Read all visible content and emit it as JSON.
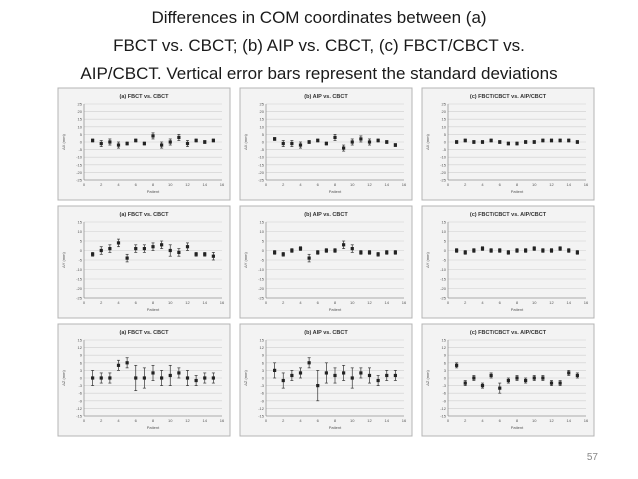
{
  "slide": {
    "title_lines": [
      "Differences in COM coordinates between (a)",
      "FBCT vs. CBCT; (b) AIP vs. CBCT, (c) FBCT/CBCT vs.",
      "AIP/CBCT. Vertical error bars represent the standard deviations"
    ],
    "page_number": "57"
  },
  "chart_data": [
    {
      "type": "scatter",
      "title": "(a) FBCT vs. CBCT",
      "xlabel": "Patient",
      "ylabel": "ΔX (mm)",
      "xlim": [
        0,
        16
      ],
      "ylim": [
        -25,
        25
      ],
      "xticks": [
        0,
        2,
        4,
        6,
        8,
        10,
        12,
        14,
        16
      ],
      "yticks": [
        -25,
        -20,
        -15,
        -10,
        -5,
        0,
        5,
        10,
        15,
        20,
        25
      ],
      "x": [
        1,
        2,
        3,
        4,
        5,
        6,
        7,
        8,
        9,
        10,
        11,
        12,
        13,
        14,
        15
      ],
      "y": [
        1,
        -1,
        0,
        -2,
        -1,
        1,
        -1,
        4,
        -2,
        0,
        3,
        -1,
        1,
        0,
        1
      ],
      "err": [
        1,
        2,
        2,
        2,
        1,
        1,
        1,
        2,
        2,
        2,
        2,
        2,
        1,
        1,
        1
      ]
    },
    {
      "type": "scatter",
      "title": "(b) AIP vs. CBCT",
      "xlabel": "Patient",
      "ylabel": "ΔX (mm)",
      "xlim": [
        0,
        16
      ],
      "ylim": [
        -25,
        25
      ],
      "xticks": [
        0,
        2,
        4,
        6,
        8,
        10,
        12,
        14,
        16
      ],
      "yticks": [
        -25,
        -20,
        -15,
        -10,
        -5,
        0,
        5,
        10,
        15,
        20,
        25
      ],
      "x": [
        1,
        2,
        3,
        4,
        5,
        6,
        7,
        8,
        9,
        10,
        11,
        12,
        13,
        14,
        15
      ],
      "y": [
        2,
        -1,
        -1,
        -2,
        0,
        1,
        -1,
        3,
        -4,
        0,
        2,
        0,
        1,
        0,
        -2
      ],
      "err": [
        1,
        2,
        2,
        2,
        1,
        1,
        1,
        2,
        2,
        2,
        2,
        2,
        1,
        1,
        1
      ]
    },
    {
      "type": "scatter",
      "title": "(c) FBCT/CBCT vs. AIP/CBCT",
      "xlabel": "Patient",
      "ylabel": "ΔX (mm)",
      "xlim": [
        0,
        16
      ],
      "ylim": [
        -25,
        25
      ],
      "xticks": [
        0,
        2,
        4,
        6,
        8,
        10,
        12,
        14,
        16
      ],
      "yticks": [
        -25,
        -20,
        -15,
        -10,
        -5,
        0,
        5,
        10,
        15,
        20,
        25
      ],
      "x": [
        1,
        2,
        3,
        4,
        5,
        6,
        7,
        8,
        9,
        10,
        11,
        12,
        13,
        14,
        15
      ],
      "y": [
        0,
        1,
        0,
        0,
        1,
        0,
        -1,
        -1,
        0,
        0,
        1,
        1,
        1,
        1,
        0
      ],
      "err": [
        1,
        1,
        1,
        1,
        1,
        1,
        1,
        1,
        1,
        1,
        1,
        1,
        1,
        1,
        1
      ]
    },
    {
      "type": "scatter",
      "title": "(a) FBCT vs. CBCT",
      "xlabel": "Patient",
      "ylabel": "ΔY (mm)",
      "xlim": [
        0,
        16
      ],
      "ylim": [
        -25,
        15
      ],
      "xticks": [
        0,
        2,
        4,
        6,
        8,
        10,
        12,
        14,
        16
      ],
      "yticks": [
        -25,
        -20,
        -15,
        -10,
        -5,
        0,
        5,
        10,
        15
      ],
      "x": [
        1,
        2,
        3,
        4,
        5,
        6,
        7,
        8,
        9,
        10,
        11,
        12,
        13,
        14,
        15
      ],
      "y": [
        -2,
        0,
        1,
        4,
        -4,
        1,
        1,
        2,
        3,
        0,
        -1,
        2,
        -2,
        -2,
        -3
      ],
      "err": [
        1,
        2,
        2,
        2,
        2,
        2,
        2,
        2,
        2,
        3,
        2,
        2,
        1,
        1,
        2
      ]
    },
    {
      "type": "scatter",
      "title": "(b) AIP vs. CBCT",
      "xlabel": "Patient",
      "ylabel": "ΔY (mm)",
      "xlim": [
        0,
        16
      ],
      "ylim": [
        -25,
        15
      ],
      "xticks": [
        0,
        2,
        4,
        6,
        8,
        10,
        12,
        14,
        16
      ],
      "yticks": [
        -25,
        -20,
        -15,
        -10,
        -5,
        0,
        5,
        10,
        15
      ],
      "x": [
        1,
        2,
        3,
        4,
        5,
        6,
        7,
        8,
        9,
        10,
        11,
        12,
        13,
        14,
        15
      ],
      "y": [
        -1,
        -2,
        0,
        1,
        -4,
        -1,
        0,
        0,
        3,
        1,
        -1,
        -1,
        -2,
        -1,
        -1
      ],
      "err": [
        1,
        1,
        1,
        1,
        2,
        1,
        1,
        1,
        2,
        2,
        1,
        1,
        1,
        1,
        1
      ]
    },
    {
      "type": "scatter",
      "title": "(c) FBCT/CBCT vs. AIP/CBCT",
      "xlabel": "Patient",
      "ylabel": "ΔY (mm)",
      "xlim": [
        0,
        16
      ],
      "ylim": [
        -25,
        15
      ],
      "xticks": [
        0,
        2,
        4,
        6,
        8,
        10,
        12,
        14,
        16
      ],
      "yticks": [
        -25,
        -20,
        -15,
        -10,
        -5,
        0,
        5,
        10,
        15
      ],
      "x": [
        1,
        2,
        3,
        4,
        5,
        6,
        7,
        8,
        9,
        10,
        11,
        12,
        13,
        14,
        15
      ],
      "y": [
        0,
        -1,
        0,
        1,
        0,
        0,
        -1,
        0,
        0,
        1,
        0,
        0,
        1,
        0,
        -1
      ],
      "err": [
        1,
        1,
        1,
        1,
        1,
        1,
        1,
        1,
        1,
        1,
        1,
        1,
        1,
        1,
        1
      ]
    },
    {
      "type": "scatter",
      "title": "(a) FBCT vs. CBCT",
      "xlabel": "Patient",
      "ylabel": "ΔZ (mm)",
      "xlim": [
        0,
        16
      ],
      "ylim": [
        -15,
        15
      ],
      "xticks": [
        0,
        2,
        4,
        6,
        8,
        10,
        12,
        14,
        16
      ],
      "yticks": [
        -15,
        -12,
        -9,
        -6,
        -3,
        0,
        3,
        6,
        9,
        12,
        15
      ],
      "x": [
        1,
        2,
        3,
        4,
        5,
        6,
        7,
        8,
        9,
        10,
        11,
        12,
        13,
        14,
        15
      ],
      "y": [
        0,
        0,
        0,
        5,
        6,
        0,
        0,
        2,
        0,
        1,
        2,
        0,
        -1,
        0,
        0
      ],
      "err": [
        3,
        2,
        2,
        2,
        2,
        5,
        4,
        3,
        3,
        4,
        2,
        3,
        2,
        2,
        2
      ]
    },
    {
      "type": "scatter",
      "title": "(b) AIP vs. CBCT",
      "xlabel": "Patient",
      "ylabel": "ΔZ (mm)",
      "xlim": [
        0,
        16
      ],
      "ylim": [
        -15,
        15
      ],
      "xticks": [
        0,
        2,
        4,
        6,
        8,
        10,
        12,
        14,
        16
      ],
      "yticks": [
        -15,
        -12,
        -9,
        -6,
        -3,
        0,
        3,
        6,
        9,
        12,
        15
      ],
      "x": [
        1,
        2,
        3,
        4,
        5,
        6,
        7,
        8,
        9,
        10,
        11,
        12,
        13,
        14,
        15
      ],
      "y": [
        3,
        -1,
        1,
        2,
        6,
        -3,
        2,
        1,
        2,
        0,
        2,
        1,
        -1,
        1,
        1
      ],
      "err": [
        3,
        3,
        2,
        2,
        2,
        6,
        4,
        3,
        3,
        4,
        2,
        3,
        2,
        2,
        2
      ]
    },
    {
      "type": "scatter",
      "title": "(c) FBCT/CBCT vs. AIP/CBCT",
      "xlabel": "Patient",
      "ylabel": "ΔZ (mm)",
      "xlim": [
        0,
        16
      ],
      "ylim": [
        -15,
        15
      ],
      "xticks": [
        0,
        2,
        4,
        6,
        8,
        10,
        12,
        14,
        16
      ],
      "yticks": [
        -15,
        -12,
        -9,
        -6,
        -3,
        0,
        3,
        6,
        9,
        12,
        15
      ],
      "x": [
        1,
        2,
        3,
        4,
        5,
        6,
        7,
        8,
        9,
        10,
        11,
        12,
        13,
        14,
        15
      ],
      "y": [
        5,
        -2,
        0,
        -3,
        1,
        -4,
        -1,
        0,
        -1,
        0,
        0,
        -2,
        -2,
        2,
        1
      ],
      "err": [
        1,
        1,
        1,
        1,
        1,
        2,
        1,
        1,
        1,
        1,
        1,
        1,
        1,
        1,
        1
      ]
    }
  ]
}
